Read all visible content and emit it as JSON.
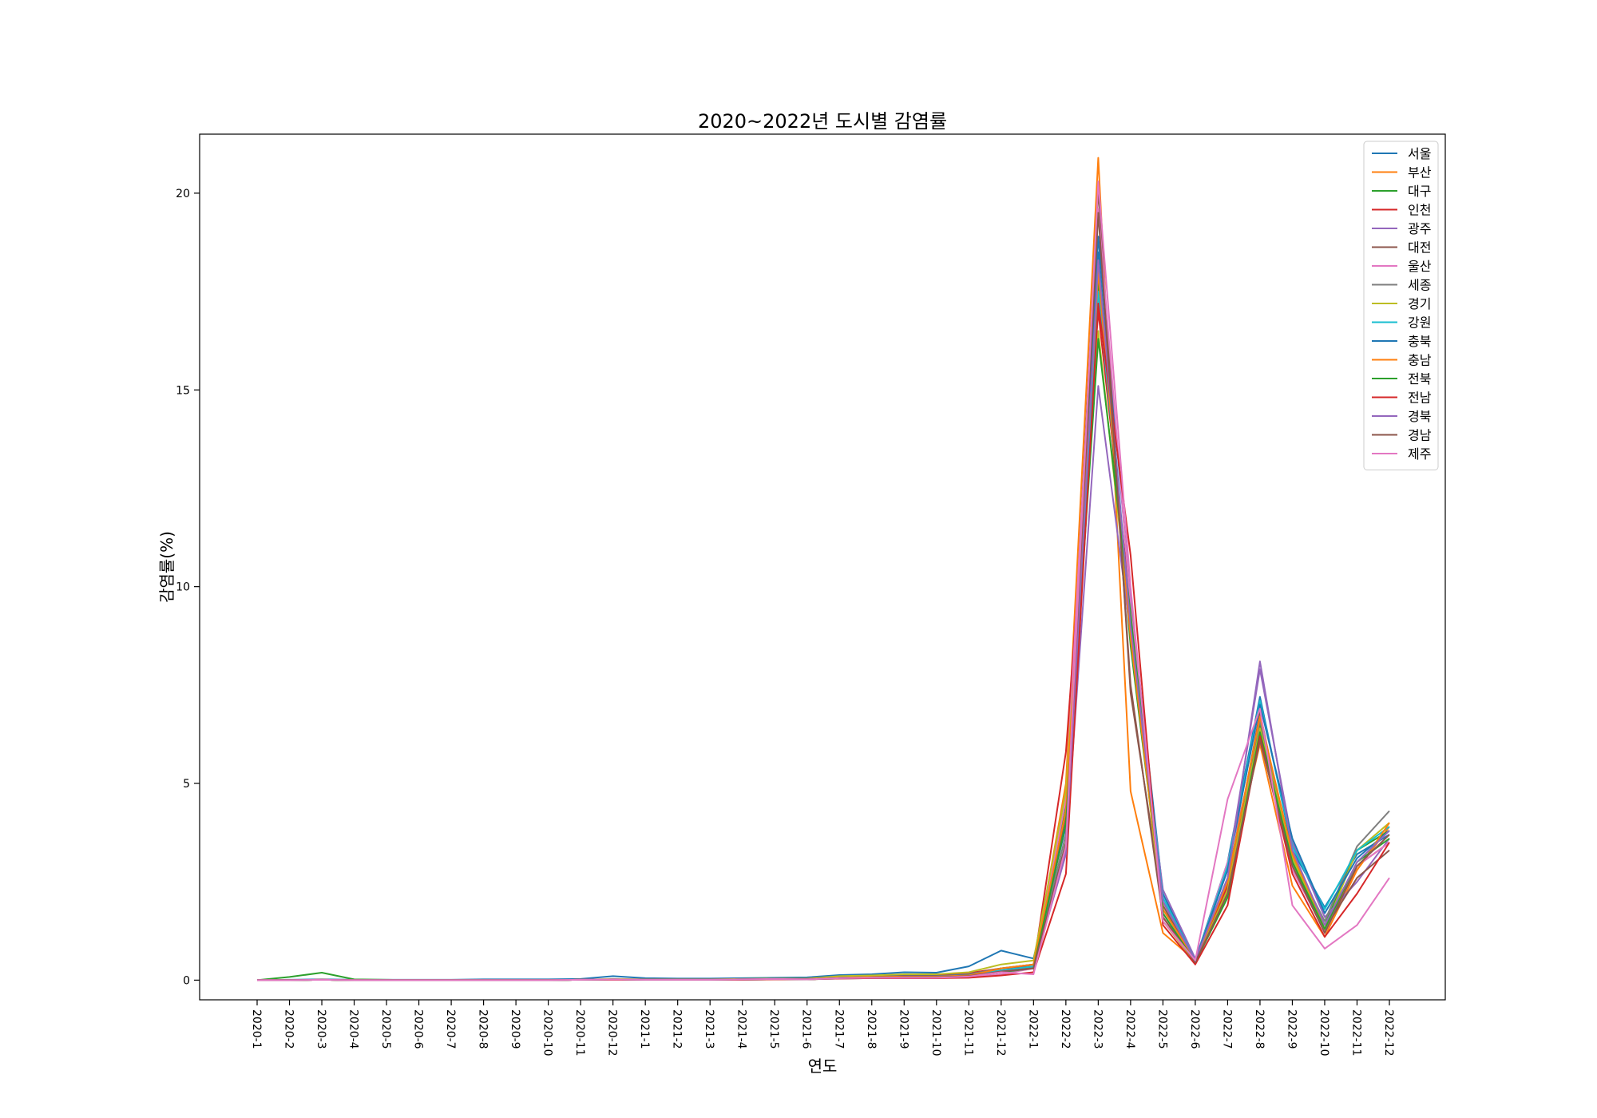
{
  "chart_data": {
    "type": "line",
    "title": "2020~2022년 도시별 감염률",
    "xlabel": "연도",
    "ylabel": "감염률(%)",
    "ylim": [
      -0.5,
      21.5
    ],
    "yticks": [
      0,
      5,
      10,
      15,
      20
    ],
    "grid": false,
    "legend_position": "upper right",
    "x": [
      "2020-1",
      "2020-2",
      "2020-3",
      "2020-4",
      "2020-5",
      "2020-6",
      "2020-7",
      "2020-8",
      "2020-9",
      "2020-10",
      "2020-11",
      "2020-12",
      "2021-1",
      "2021-2",
      "2021-3",
      "2021-4",
      "2021-5",
      "2021-6",
      "2021-7",
      "2021-8",
      "2021-9",
      "2021-10",
      "2021-11",
      "2021-12",
      "2022-1",
      "2022-2",
      "2022-3",
      "2022-4",
      "2022-5",
      "2022-6",
      "2022-7",
      "2022-8",
      "2022-9",
      "2022-10",
      "2022-11",
      "2022-12"
    ],
    "series": [
      {
        "name": "서울",
        "color": "#1f77b4",
        "values": [
          0,
          0.01,
          0.02,
          0.01,
          0.01,
          0.01,
          0.01,
          0.02,
          0.02,
          0.02,
          0.03,
          0.1,
          0.05,
          0.04,
          0.04,
          0.05,
          0.06,
          0.07,
          0.13,
          0.15,
          0.2,
          0.19,
          0.35,
          0.75,
          0.55,
          3.9,
          18.9,
          9.7,
          2.2,
          0.5,
          3.0,
          7.2,
          3.3,
          1.85,
          3.2,
          3.7
        ]
      },
      {
        "name": "부산",
        "color": "#ff7f0e",
        "values": [
          0,
          0,
          0.01,
          0,
          0,
          0,
          0,
          0,
          0,
          0,
          0.01,
          0.02,
          0.01,
          0.01,
          0.01,
          0.02,
          0.03,
          0.02,
          0.05,
          0.05,
          0.07,
          0.07,
          0.09,
          0.25,
          0.3,
          5.0,
          20.9,
          4.8,
          1.2,
          0.5,
          2.5,
          6.0,
          2.4,
          1.1,
          2.8,
          3.9
        ]
      },
      {
        "name": "대구",
        "color": "#2ca02c",
        "values": [
          0,
          0.08,
          0.19,
          0.02,
          0.01,
          0,
          0,
          0,
          0,
          0,
          0.01,
          0.02,
          0.01,
          0.01,
          0.01,
          0.01,
          0.02,
          0.02,
          0.04,
          0.05,
          0.06,
          0.06,
          0.08,
          0.2,
          0.35,
          4.5,
          17.8,
          8.5,
          1.8,
          0.5,
          2.2,
          6.5,
          3.0,
          1.4,
          3.3,
          3.8
        ]
      },
      {
        "name": "인천",
        "color": "#d62728",
        "values": [
          0,
          0,
          0.01,
          0,
          0,
          0,
          0,
          0,
          0,
          0,
          0.01,
          0.02,
          0.01,
          0.01,
          0.01,
          0.02,
          0.03,
          0.03,
          0.08,
          0.1,
          0.12,
          0.12,
          0.18,
          0.3,
          0.35,
          5.8,
          17.0,
          9.5,
          1.6,
          0.45,
          2.4,
          6.1,
          3.2,
          1.2,
          2.9,
          3.5
        ]
      },
      {
        "name": "광주",
        "color": "#9467bd",
        "values": [
          0,
          0,
          0.01,
          0,
          0,
          0,
          0,
          0,
          0,
          0,
          0.01,
          0.02,
          0.01,
          0.01,
          0.01,
          0.02,
          0.03,
          0.02,
          0.05,
          0.06,
          0.06,
          0.06,
          0.1,
          0.2,
          0.3,
          3.3,
          15.1,
          8.8,
          2.3,
          0.55,
          2.8,
          7.9,
          3.5,
          1.6,
          2.5,
          3.6
        ]
      },
      {
        "name": "대전",
        "color": "#8c564b",
        "values": [
          0,
          0,
          0.01,
          0,
          0,
          0,
          0,
          0,
          0,
          0,
          0.01,
          0.02,
          0.01,
          0.01,
          0.01,
          0.02,
          0.03,
          0.02,
          0.05,
          0.07,
          0.08,
          0.08,
          0.12,
          0.25,
          0.3,
          4.2,
          20.1,
          7.3,
          1.9,
          0.45,
          2.3,
          6.8,
          2.9,
          1.3,
          2.6,
          3.3
        ]
      },
      {
        "name": "울산",
        "color": "#e377c2",
        "values": [
          0,
          0,
          0.01,
          0,
          0,
          0,
          0,
          0,
          0,
          0,
          0.01,
          0.01,
          0.01,
          0.01,
          0.01,
          0.01,
          0.02,
          0.02,
          0.04,
          0.05,
          0.05,
          0.05,
          0.07,
          0.15,
          0.3,
          4.6,
          19.6,
          9.5,
          1.7,
          0.45,
          3.0,
          6.2,
          2.8,
          1.25,
          2.9,
          3.5
        ]
      },
      {
        "name": "세종",
        "color": "#7f7f7f",
        "values": [
          0,
          0,
          0.01,
          0,
          0,
          0,
          0,
          0,
          0,
          0,
          0.01,
          0.02,
          0.01,
          0.01,
          0.01,
          0.02,
          0.03,
          0.03,
          0.07,
          0.08,
          0.1,
          0.1,
          0.15,
          0.3,
          0.4,
          3.7,
          18.2,
          8.9,
          2.0,
          0.5,
          2.6,
          6.6,
          3.1,
          1.5,
          3.4,
          4.3
        ]
      },
      {
        "name": "경기",
        "color": "#bcbd22",
        "values": [
          0,
          0,
          0.01,
          0,
          0,
          0,
          0,
          0,
          0,
          0,
          0.01,
          0.03,
          0.02,
          0.02,
          0.02,
          0.03,
          0.04,
          0.04,
          0.1,
          0.12,
          0.15,
          0.15,
          0.2,
          0.4,
          0.5,
          4.8,
          16.5,
          8.9,
          1.5,
          0.45,
          2.3,
          6.4,
          3.1,
          1.3,
          3.3,
          4.0
        ]
      },
      {
        "name": "강원",
        "color": "#17becf",
        "values": [
          0,
          0,
          0.01,
          0,
          0,
          0,
          0,
          0,
          0,
          0,
          0.01,
          0.02,
          0.01,
          0.01,
          0.01,
          0.02,
          0.03,
          0.03,
          0.06,
          0.07,
          0.08,
          0.08,
          0.1,
          0.25,
          0.35,
          3.5,
          17.5,
          9.2,
          2.1,
          0.5,
          2.9,
          7.1,
          3.4,
          1.8,
          3.3,
          3.9
        ]
      },
      {
        "name": "충북",
        "color": "#1f77b4",
        "values": [
          0,
          0,
          0.01,
          0,
          0,
          0,
          0,
          0,
          0,
          0,
          0.01,
          0.02,
          0.01,
          0.01,
          0.01,
          0.02,
          0.03,
          0.03,
          0.06,
          0.08,
          0.1,
          0.1,
          0.13,
          0.3,
          0.4,
          4.0,
          18.5,
          9.0,
          2.0,
          0.5,
          2.8,
          7.0,
          3.6,
          1.7,
          3.1,
          3.8
        ]
      },
      {
        "name": "충남",
        "color": "#ff7f0e",
        "values": [
          0,
          0,
          0.01,
          0,
          0,
          0,
          0,
          0,
          0,
          0,
          0.01,
          0.02,
          0.01,
          0.01,
          0.01,
          0.02,
          0.03,
          0.03,
          0.06,
          0.08,
          0.09,
          0.09,
          0.12,
          0.3,
          0.4,
          4.3,
          18.0,
          8.7,
          1.8,
          0.5,
          2.5,
          6.7,
          3.2,
          1.4,
          2.8,
          4.0
        ]
      },
      {
        "name": "전북",
        "color": "#2ca02c",
        "values": [
          0,
          0,
          0.01,
          0,
          0,
          0,
          0,
          0,
          0,
          0,
          0.01,
          0.02,
          0.01,
          0.01,
          0.01,
          0.02,
          0.03,
          0.02,
          0.05,
          0.06,
          0.07,
          0.07,
          0.1,
          0.2,
          0.3,
          4.0,
          16.3,
          9.3,
          1.7,
          0.45,
          2.1,
          6.3,
          3.0,
          1.3,
          3.0,
          3.6
        ]
      },
      {
        "name": "전남",
        "color": "#d62728",
        "values": [
          0,
          0,
          0.01,
          0,
          0,
          0,
          0,
          0,
          0,
          0,
          0.01,
          0.01,
          0.01,
          0.01,
          0.01,
          0.01,
          0.02,
          0.02,
          0.04,
          0.05,
          0.05,
          0.05,
          0.06,
          0.12,
          0.2,
          2.7,
          17.2,
          10.8,
          1.4,
          0.4,
          1.9,
          6.2,
          2.7,
          1.1,
          2.2,
          3.5
        ]
      },
      {
        "name": "경북",
        "color": "#9467bd",
        "values": [
          0,
          0,
          0.01,
          0,
          0,
          0,
          0,
          0,
          0,
          0,
          0.01,
          0.02,
          0.01,
          0.01,
          0.01,
          0.02,
          0.03,
          0.02,
          0.05,
          0.06,
          0.07,
          0.07,
          0.1,
          0.22,
          0.3,
          3.2,
          18.3,
          9.0,
          2.0,
          0.5,
          2.6,
          8.1,
          3.3,
          1.4,
          3.0,
          3.8
        ]
      },
      {
        "name": "경남",
        "color": "#8c564b",
        "values": [
          0,
          0,
          0.01,
          0,
          0,
          0,
          0,
          0,
          0,
          0,
          0.01,
          0.02,
          0.01,
          0.01,
          0.01,
          0.02,
          0.03,
          0.02,
          0.05,
          0.06,
          0.07,
          0.07,
          0.1,
          0.22,
          0.3,
          3.5,
          19.5,
          7.5,
          1.6,
          0.45,
          2.2,
          6.1,
          2.9,
          1.2,
          2.9,
          3.7
        ]
      },
      {
        "name": "제주",
        "color": "#e377c2",
        "values": [
          0,
          0,
          0.01,
          0,
          0,
          0,
          0,
          0,
          0,
          0,
          0.01,
          0.02,
          0.01,
          0.01,
          0.01,
          0.02,
          0.03,
          0.02,
          0.05,
          0.06,
          0.06,
          0.06,
          0.09,
          0.2,
          0.15,
          3.4,
          20.3,
          10.0,
          1.5,
          0.5,
          4.6,
          6.9,
          1.9,
          0.8,
          1.4,
          2.6
        ]
      }
    ]
  }
}
